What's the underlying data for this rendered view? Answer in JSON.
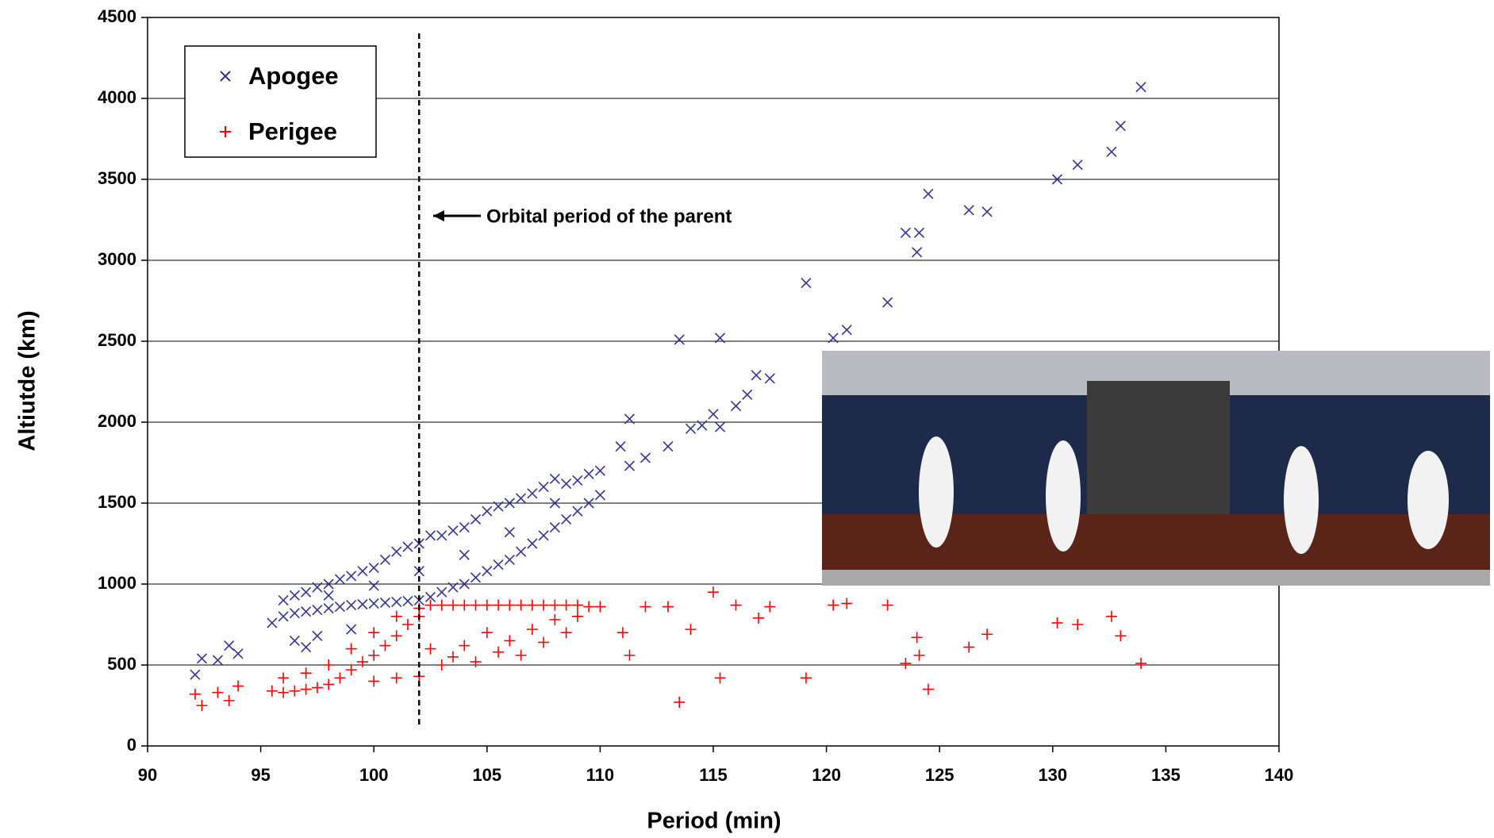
{
  "chart_data": {
    "type": "scatter",
    "x_label": "Period  (min)",
    "y_label": "Altiutde  (km)",
    "annotation": "Orbital period of the parent",
    "parent_period": 102,
    "xlim": [
      90,
      140
    ],
    "xticks": [
      90,
      95,
      100,
      105,
      110,
      115,
      120,
      125,
      130,
      135,
      140
    ],
    "ylim": [
      0,
      4500
    ],
    "yticks": [
      0,
      500,
      1000,
      1500,
      2000,
      2500,
      3000,
      3500,
      4000,
      4500
    ],
    "grid": true,
    "legend": "upper left",
    "series": [
      {
        "name": "Apogee",
        "color": "#333399",
        "marker": "x",
        "x": [
          95.5,
          96,
          96.5,
          97,
          97.5,
          98,
          98.5,
          99,
          99.5,
          100,
          100.5,
          101,
          101.5,
          102,
          102.5,
          103,
          103.5,
          104,
          104.5,
          105,
          105.5,
          106,
          106.5,
          107,
          107.5,
          108,
          108.5,
          109,
          109.5,
          110,
          96,
          96.5,
          97,
          97.5,
          98,
          98.5,
          99,
          99.5,
          100,
          100.5,
          101,
          101.5,
          102,
          102.5,
          103,
          103.5,
          104,
          104.5,
          105,
          105.5,
          106,
          106.5,
          107,
          107.5,
          108,
          108.5,
          109,
          109.5,
          110,
          98,
          100,
          102,
          104,
          106,
          108,
          96.5,
          97.5,
          99,
          97,
          92.1,
          92.4,
          93.1,
          93.6,
          94,
          111.3,
          110.9,
          111.3,
          112,
          113,
          113.5,
          114,
          114.5,
          115,
          115.3,
          115.3,
          116,
          116.5,
          116.9,
          117.5,
          119.1,
          120.3,
          120.9,
          122.7,
          123.5,
          124,
          124.1,
          124.5,
          126.3,
          127.1,
          130.2,
          131.1,
          132.6,
          133,
          133.9
        ],
        "values": [
          760,
          800,
          820,
          830,
          840,
          850,
          860,
          870,
          875,
          880,
          885,
          890,
          895,
          900,
          920,
          950,
          980,
          1000,
          1040,
          1080,
          1120,
          1150,
          1200,
          1250,
          1300,
          1350,
          1400,
          1450,
          1500,
          1550,
          900,
          930,
          950,
          980,
          1000,
          1030,
          1050,
          1080,
          1100,
          1150,
          1200,
          1230,
          1250,
          1300,
          1300,
          1330,
          1350,
          1400,
          1450,
          1480,
          1500,
          1530,
          1560,
          1600,
          1650,
          1620,
          1640,
          1680,
          1700,
          930,
          990,
          1080,
          1180,
          1320,
          1500,
          650,
          680,
          720,
          610,
          440,
          540,
          530,
          620,
          570,
          2020,
          1850,
          1730,
          1780,
          1850,
          2510,
          1960,
          1980,
          2050,
          1970,
          2520,
          2100,
          2170,
          2290,
          2270,
          2860,
          2520,
          2570,
          2740,
          3170,
          3050,
          3170,
          3410,
          3310,
          3300,
          3500,
          3590,
          3670,
          3830,
          4070
        ]
      },
      {
        "name": "Perigee",
        "color": "#ff0000",
        "marker": "+",
        "x": [
          95.5,
          96,
          96.5,
          97,
          97.5,
          98,
          98.5,
          99,
          99.5,
          100,
          100.5,
          101,
          101.5,
          102,
          102.5,
          103,
          103.5,
          104,
          104.5,
          105,
          105.5,
          106,
          106.5,
          107,
          107.5,
          108,
          108.5,
          109,
          109.5,
          110,
          96,
          97,
          98,
          99,
          100,
          101,
          102,
          102.5,
          103,
          103.5,
          104,
          104.5,
          105,
          105.5,
          106,
          106.5,
          107,
          107.5,
          108,
          108.5,
          109,
          101,
          100,
          102,
          92.1,
          92.4,
          93.1,
          93.6,
          94,
          111,
          111.3,
          112,
          113,
          113.5,
          114,
          115,
          115.3,
          116,
          117,
          117.5,
          119.1,
          120.3,
          120.9,
          122.7,
          123.5,
          124,
          124.1,
          124.5,
          126.3,
          127.1,
          130.2,
          131.1,
          132.6,
          133,
          133.9
        ],
        "values": [
          340,
          330,
          340,
          350,
          360,
          380,
          420,
          470,
          520,
          560,
          620,
          680,
          750,
          800,
          870,
          870,
          870,
          870,
          870,
          870,
          870,
          870,
          870,
          870,
          870,
          870,
          870,
          870,
          860,
          860,
          420,
          450,
          500,
          600,
          700,
          800,
          850,
          600,
          500,
          550,
          620,
          520,
          700,
          580,
          650,
          560,
          720,
          640,
          780,
          700,
          800,
          420,
          400,
          430,
          320,
          250,
          330,
          280,
          370,
          700,
          560,
          860,
          860,
          270,
          720,
          950,
          420,
          870,
          790,
          860,
          420,
          870,
          880,
          870,
          510,
          670,
          560,
          350,
          610,
          690,
          760,
          750,
          800,
          680,
          510
        ]
      }
    ]
  }
}
